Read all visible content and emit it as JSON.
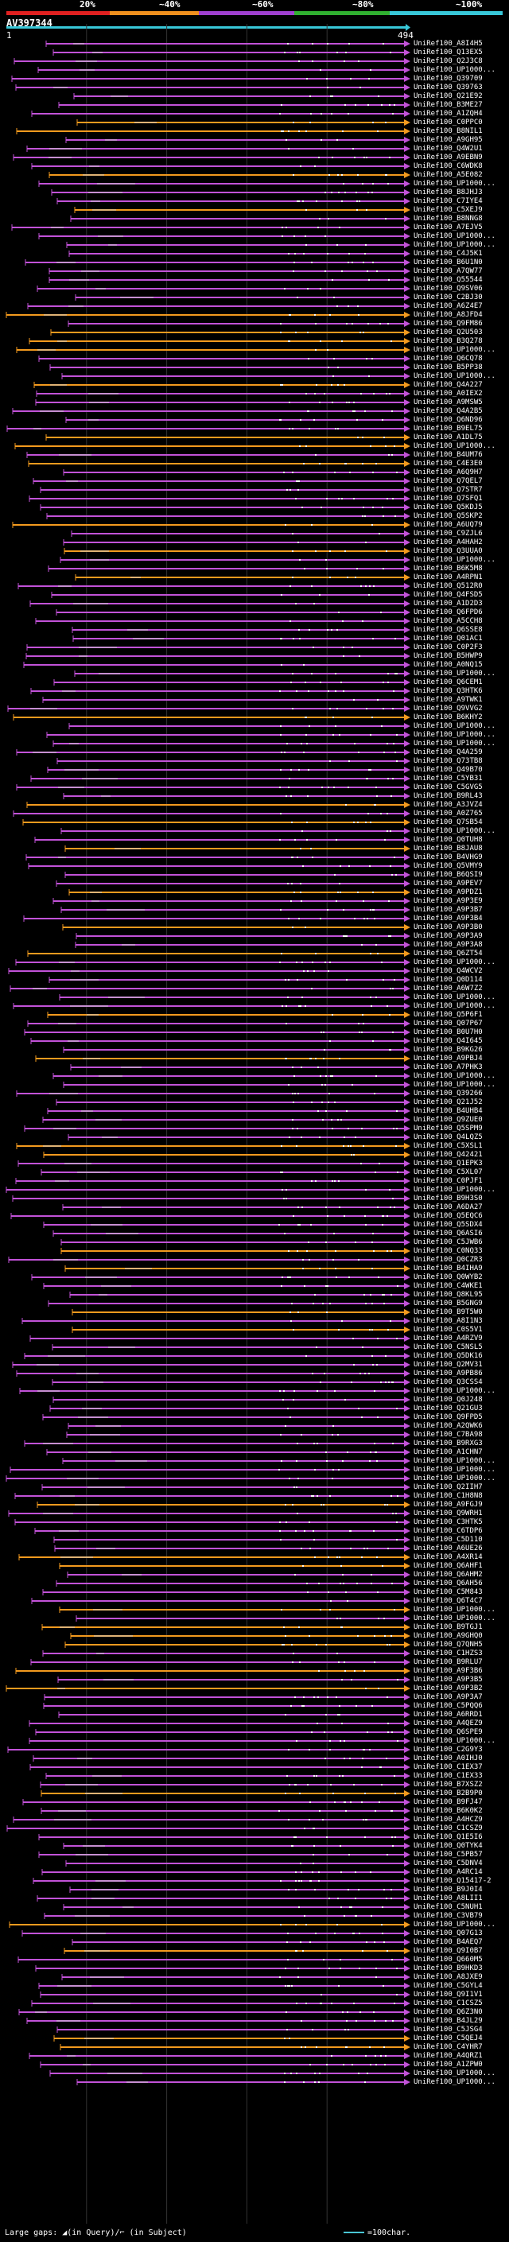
{
  "legend": {
    "scale_labels": [
      "20%",
      "~40%",
      "~60%",
      "~80%",
      "~100%"
    ],
    "segment_colors": [
      "#e02020",
      "#f0901e",
      "#a040d0",
      "#30b030",
      "#38c7d8"
    ]
  },
  "query": {
    "id": "AV397344",
    "start": "1",
    "end": "494",
    "bar_color": "#38c7d8"
  },
  "colors": {
    "purple": "#c252d8",
    "orange": "#f39a1e",
    "gap": "#cccccc",
    "background": "#000000"
  },
  "hits": [
    "UniRef100_A8I4H5",
    "UniRef100_Q13EX5",
    "UniRef100_Q2J3C8",
    "UniRef100_UP1000...",
    "UniRef100_Q39709",
    "UniRef100_Q39763",
    "UniRef100_Q21E92",
    "UniRef100_B3ME27",
    "UniRef100_A1ZQH4",
    "UniRef100_C0PPC0",
    "UniRef100_B8NIL1",
    "UniRef100_A9GH95",
    "UniRef100_Q4W2U1",
    "UniRef100_A9EBN9",
    "UniRef100_C6WDK8",
    "UniRef100_A5E082",
    "UniRef100_UP1000...",
    "UniRef100_B8JHJ3",
    "UniRef100_C7IYE4",
    "UniRef100_C5XEJ9",
    "UniRef100_B8NNG8",
    "UniRef100_A7EJV5",
    "UniRef100_UP1000...",
    "UniRef100_UP1000...",
    "UniRef100_C4J5K1",
    "UniRef100_B6U1N0",
    "UniRef100_A7QW77",
    "UniRef100_Q55544",
    "UniRef100_Q9SV06",
    "UniRef100_C2BJ30",
    "UniRef100_A6Z4E7",
    "UniRef100_A8JFD4",
    "UniRef100_Q9FM86",
    "UniRef100_Q2U503",
    "UniRef100_B3Q278",
    "UniRef100_UP1000...",
    "UniRef100_Q6CQ78",
    "UniRef100_B5PP38",
    "UniRef100_UP1000...",
    "UniRef100_Q4A227",
    "UniRef100_A0IEX2",
    "UniRef100_A9MSW5",
    "UniRef100_Q4A2B5",
    "UniRef100_Q6ND96",
    "UniRef100_B9EL75",
    "UniRef100_A1DL75",
    "UniRef100_UP1000...",
    "UniRef100_B4UM76",
    "UniRef100_C4E3E0",
    "UniRef100_A6Q9H7",
    "UniRef100_Q7QEL7",
    "UniRef100_Q7STR7",
    "UniRef100_Q7SFQ1",
    "UniRef100_Q5KDJ5",
    "UniRef100_Q5SKP2",
    "UniRef100_A6UQ79",
    "UniRef100_C9ZJL6",
    "UniRef100_A4HAH2",
    "UniRef100_Q3UUA0",
    "UniRef100_UP1000...",
    "UniRef100_B6K5M8",
    "UniRef100_A4RPN1",
    "UniRef100_Q512R0",
    "UniRef100_Q4FSD5",
    "UniRef100_A1D2D3",
    "UniRef100_Q6FPD6",
    "UniRef100_A5CCH8",
    "UniRef100_Q6SSE8",
    "UniRef100_Q01AC1",
    "UniRef100_C0P2F3",
    "UniRef100_B5HWP9",
    "UniRef100_A0NQ15",
    "UniRef100_UP1000...",
    "UniRef100_Q6CEM1",
    "UniRef100_Q3HTK6",
    "UniRef100_A9TWK1",
    "UniRef100_Q9VVG2",
    "UniRef100_B6KHY2",
    "UniRef100_UP1000...",
    "UniRef100_UP1000...",
    "UniRef100_UP1000...",
    "UniRef100_Q4A259",
    "UniRef100_Q73TB8",
    "UniRef100_Q49B70",
    "UniRef100_C5YB31",
    "UniRef100_C5GVG5",
    "UniRef100_B9RL43",
    "UniRef100_A3JVZ4",
    "UniRef100_A0Z765",
    "UniRef100_Q7SB54",
    "UniRef100_UP1000...",
    "UniRef100_Q0TUH8",
    "UniRef100_B8JAU8",
    "UniRef100_B4VHG9",
    "UniRef100_Q5VMY9",
    "UniRef100_B6QSI9",
    "UniRef100_A9PEV7",
    "UniRef100_A9PDZ1",
    "UniRef100_A9P3E9",
    "UniRef100_A9P3B7",
    "UniRef100_A9P3B4",
    "UniRef100_A9P3B0",
    "UniRef100_A9P3A9",
    "UniRef100_A9P3A8",
    "UniRef100_Q6ZT54",
    "UniRef100_UP1000...",
    "UniRef100_Q4WCV2",
    "UniRef100_Q0D114",
    "UniRef100_A6W7Z2",
    "UniRef100_UP1000...",
    "UniRef100_UP1000...",
    "UniRef100_Q5P6F1",
    "UniRef100_Q07P67",
    "UniRef100_B0U7H0",
    "UniRef100_Q4I645",
    "UniRef100_B9KG26",
    "UniRef100_A9PBJ4",
    "UniRef100_A7PHK3",
    "UniRef100_UP1000...",
    "UniRef100_UP1000...",
    "UniRef100_Q39266",
    "UniRef100_Q21J52",
    "UniRef100_B4UHB4",
    "UniRef100_Q9ZUE0",
    "UniRef100_Q5SPM9",
    "UniRef100_Q4LQZ5",
    "UniRef100_C5XSL1",
    "UniRef100_Q42421",
    "UniRef100_Q1EPK3",
    "UniRef100_C5XL07",
    "UniRef100_C0PJF1",
    "UniRef100_UP1000...",
    "UniRef100_B9H3S0",
    "UniRef100_A6DA27",
    "UniRef100_Q5EQC6",
    "UniRef100_Q5SDX4",
    "UniRef100_Q6ASI6",
    "UniRef100_C5JWB6",
    "UniRef100_C0NQ33",
    "UniRef100_Q0CZR3",
    "UniRef100_B4IHA9",
    "UniRef100_Q0WYB2",
    "UniRef100_C4WKE1",
    "UniRef100_Q8KL95",
    "UniRef100_B5GNG9",
    "UniRef100_B9T5W0",
    "UniRef100_A8I1N3",
    "UniRef100_C0S5V1",
    "UniRef100_A4RZV9",
    "UniRef100_C5NSL5",
    "UniRef100_Q5DK16",
    "UniRef100_Q2MV31",
    "UniRef100_A9PB86",
    "UniRef100_Q3CSS4",
    "UniRef100_UP1000...",
    "UniRef100_Q0J248",
    "UniRef100_Q21GU3",
    "UniRef100_Q9FPD5",
    "UniRef100_A2QWK6",
    "UniRef100_C7BA98",
    "UniRef100_B9RXG3",
    "UniRef100_A1CHN7",
    "UniRef100_UP1000...",
    "UniRef100_UP1000...",
    "UniRef100_UP1000...",
    "UniRef100_Q2IIH7",
    "UniRef100_C1H8N8",
    "UniRef100_A9FGJ9",
    "UniRef100_Q9WRH1",
    "UniRef100_C3HTK5",
    "UniRef100_C6TDP6",
    "UniRef100_C5D110",
    "UniRef100_A6UE26",
    "UniRef100_A4XR14",
    "UniRef100_Q6AHF1",
    "UniRef100_Q6AHM2",
    "UniRef100_Q6AH56",
    "UniRef100_C5M843",
    "UniRef100_Q6T4C7",
    "UniRef100_UP1000...",
    "UniRef100_UP1000...",
    "UniRef100_B9TGJ1",
    "UniRef100_A9GHQ0",
    "UniRef100_Q7QNH5",
    "UniRef100_C1HZS3",
    "UniRef100_B9RLU7",
    "UniRef100_A9F3B6",
    "UniRef100_A9P3B5",
    "UniRef100_A9P3B2",
    "UniRef100_A9P3A7",
    "UniRef100_C5PQQ6",
    "UniRef100_A6RRD1",
    "UniRef100_A4QEZ9",
    "UniRef100_Q6SPE9",
    "UniRef100_UP1000...",
    "UniRef100_C2G9Y3",
    "UniRef100_A0IHJ0",
    "UniRef100_C1EX37",
    "UniRef100_C1EX33",
    "UniRef100_B7XSZ2",
    "UniRef100_B2B9P0",
    "UniRef100_B9FJ47",
    "UniRef100_B6K0K2",
    "UniRef100_A4HCZ9",
    "UniRef100_C1CSZ9",
    "UniRef100_Q1E5I6",
    "UniRef100_Q0TYK4",
    "UniRef100_C5PB57",
    "UniRef100_C5DNV4",
    "UniRef100_A4RC14",
    "UniRef100_Q15417-2",
    "UniRef100_B9J0I4",
    "UniRef100_A8LII1",
    "UniRef100_C5NUH1",
    "UniRef100_C3VB79",
    "UniRef100_UP1000...",
    "UniRef100_Q07G13",
    "UniRef100_B4AEQ7",
    "UniRef100_Q9I0B7",
    "UniRef100_Q660M5",
    "UniRef100_B9HKD3",
    "UniRef100_A8JXE9",
    "UniRef100_C5GYL4",
    "UniRef100_Q9I1V1",
    "UniRef100_C1CSZ5",
    "UniRef100_Q6Z3N0",
    "UniRef100_B4JL29",
    "UniRef100_C5JSG4",
    "UniRef100_C5QEJ4",
    "UniRef100_C4YHR7",
    "UniRef100_A4QRZ1",
    "UniRef100_A1ZPW0",
    "UniRef100_UP1000...",
    "UniRef100_UP1000..."
  ],
  "footer": {
    "text": "Large gaps: ◢(in Query)/⌐ (in Subject)",
    "scale": "=100char."
  }
}
